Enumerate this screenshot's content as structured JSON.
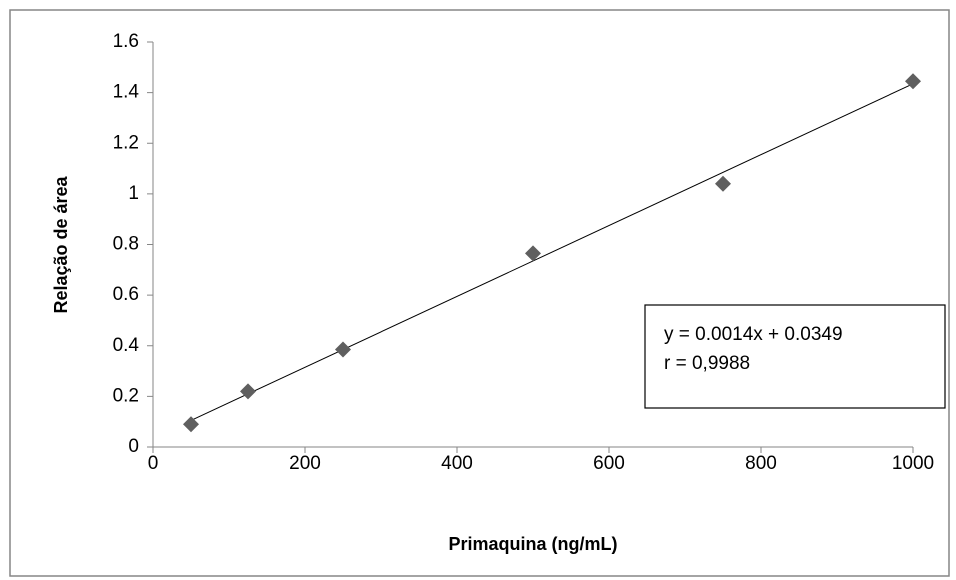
{
  "chart_data": {
    "type": "scatter",
    "x_label": "Primaquina (ng/mL)",
    "y_label": "Relação de área",
    "series": [
      {
        "name": "Relação de área",
        "color": "#5f5f5f",
        "x": [
          50,
          125,
          250,
          500,
          750,
          1000
        ],
        "values": [
          0.09,
          0.22,
          0.385,
          0.765,
          1.04,
          1.445
        ]
      }
    ],
    "trendline": {
      "slope": 0.0014,
      "intercept": 0.0349,
      "color": "#000000"
    },
    "annotations": [
      "y = 0.0014x + 0.0349",
      "r = 0,9988"
    ],
    "xlim": [
      0,
      1000
    ],
    "xticks": [
      0,
      200,
      400,
      600,
      800,
      1000
    ],
    "ylim": [
      0,
      1.6
    ],
    "yticks": [
      0,
      0.2,
      0.4,
      0.6,
      0.8,
      1,
      1.2,
      1.4,
      1.6
    ],
    "grid": false,
    "legend": false
  }
}
